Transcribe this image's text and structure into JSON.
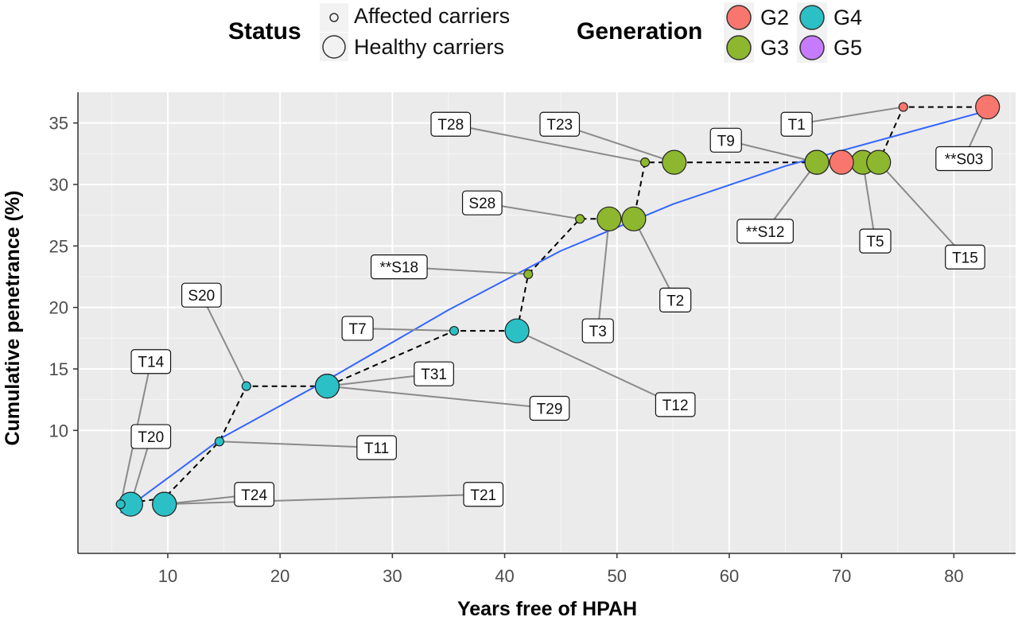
{
  "legend": {
    "status": {
      "title": "Status",
      "items": [
        {
          "label": "Affected carriers",
          "size": "small"
        },
        {
          "label": "Healthy carriers",
          "size": "large"
        }
      ]
    },
    "generation": {
      "title": "Generation",
      "items": [
        {
          "label": "G2",
          "color": "#F8766D"
        },
        {
          "label": "G4",
          "color": "#2BC0C6"
        },
        {
          "label": "G3",
          "color": "#8DB72E"
        },
        {
          "label": "G5",
          "color": "#C77CFF"
        }
      ]
    }
  },
  "chart_data": {
    "type": "scatter",
    "xlabel": "Years free of HPAH",
    "ylabel": "Cumulative penetrance (%)",
    "xlim": [
      2,
      85.5
    ],
    "ylim": [
      0,
      37.5
    ],
    "xticks": [
      10,
      20,
      30,
      40,
      50,
      60,
      70,
      80
    ],
    "yticks": [
      10,
      15,
      20,
      25,
      30,
      35
    ],
    "grid": true,
    "legend_position": "top",
    "fit_curve": {
      "color": "#3366FF",
      "x": [
        5.8,
        15,
        24,
        35,
        45,
        55,
        65,
        75,
        83
      ],
      "y": [
        3.3,
        9.5,
        14.0,
        19.8,
        24.6,
        28.4,
        31.5,
        34.0,
        36.0
      ]
    },
    "step_line": {
      "x": [
        5.8,
        9.7,
        14.6,
        17.0,
        24.2,
        35.5,
        41.1,
        42.1,
        46.7,
        51.5,
        52.5,
        73.3,
        75.5,
        83.0
      ],
      "y": [
        4.0,
        4.5,
        9.1,
        13.6,
        13.6,
        18.1,
        18.1,
        22.7,
        27.2,
        27.2,
        31.8,
        31.8,
        36.3,
        36.3
      ]
    },
    "points": [
      {
        "label": "T14",
        "x": 5.8,
        "y": 4.0,
        "status": "Affected carriers",
        "generation": "G4",
        "lx": 8.5,
        "ly": 15.6
      },
      {
        "label": "T20",
        "x": 6.7,
        "y": 4.0,
        "status": "Healthy carriers",
        "generation": "G4",
        "lx": 8.5,
        "ly": 9.5
      },
      {
        "label": "T24",
        "x": 9.7,
        "y": 4.0,
        "status": "Healthy carriers",
        "generation": "G4",
        "lx": 17.7,
        "ly": 4.8
      },
      {
        "label": "T21",
        "x": 9.7,
        "y": 4.0,
        "status": "Healthy carriers",
        "generation": "G4",
        "lx": 38.1,
        "ly": 4.8
      },
      {
        "label": "T11",
        "x": 14.6,
        "y": 9.1,
        "status": "Affected carriers",
        "generation": "G4",
        "lx": 28.6,
        "ly": 8.6
      },
      {
        "label": "S20",
        "x": 17.0,
        "y": 13.6,
        "status": "Affected carriers",
        "generation": "G4",
        "lx": 13.0,
        "ly": 21.0
      },
      {
        "label": "T31",
        "x": 24.2,
        "y": 13.6,
        "status": "Healthy carriers",
        "generation": "G4",
        "lx": 33.7,
        "ly": 14.6
      },
      {
        "label": "T29",
        "x": 24.2,
        "y": 13.6,
        "status": "Healthy carriers",
        "generation": "G4",
        "lx": 44.0,
        "ly": 11.8
      },
      {
        "label": "T7",
        "x": 35.5,
        "y": 18.1,
        "status": "Affected carriers",
        "generation": "G4",
        "lx": 26.9,
        "ly": 18.3
      },
      {
        "label": "T12",
        "x": 41.1,
        "y": 18.1,
        "status": "Healthy carriers",
        "generation": "G4",
        "lx": 55.2,
        "ly": 12.1
      },
      {
        "label": "**S18",
        "x": 42.1,
        "y": 22.7,
        "status": "Affected carriers",
        "generation": "G3",
        "lx": 30.6,
        "ly": 23.3
      },
      {
        "label": "S28",
        "x": 46.7,
        "y": 27.2,
        "status": "Affected carriers",
        "generation": "G3",
        "lx": 38.0,
        "ly": 28.5
      },
      {
        "label": "T3",
        "x": 49.3,
        "y": 27.2,
        "status": "Healthy carriers",
        "generation": "G3",
        "lx": 48.3,
        "ly": 18.1
      },
      {
        "label": "T2",
        "x": 51.5,
        "y": 27.2,
        "status": "Healthy carriers",
        "generation": "G3",
        "lx": 55.2,
        "ly": 20.6
      },
      {
        "label": "T28",
        "x": 52.5,
        "y": 31.8,
        "status": "Affected carriers",
        "generation": "G3",
        "lx": 35.2,
        "ly": 34.9
      },
      {
        "label": "T23",
        "x": 55.1,
        "y": 31.8,
        "status": "Healthy carriers",
        "generation": "G3",
        "lx": 44.9,
        "ly": 34.9
      },
      {
        "label": "T9",
        "x": 67.8,
        "y": 31.8,
        "status": "Healthy carriers",
        "generation": "G3",
        "lx": 59.7,
        "ly": 33.6
      },
      {
        "label": "**S12",
        "x": 67.8,
        "y": 31.8,
        "status": "Healthy carriers",
        "generation": "G3",
        "lx": 63.2,
        "ly": 26.2
      },
      {
        "label": "T5",
        "x": 71.9,
        "y": 31.8,
        "status": "Healthy carriers",
        "generation": "G3",
        "lx": 73.0,
        "ly": 25.4
      },
      {
        "label": "T15",
        "x": 73.3,
        "y": 31.8,
        "status": "Healthy carriers",
        "generation": "G3",
        "lx": 81.0,
        "ly": 24.1
      },
      {
        "label": "",
        "x": 70.0,
        "y": 31.8,
        "status": "Healthy carriers",
        "generation": "G2"
      },
      {
        "label": "T1",
        "x": 75.5,
        "y": 36.3,
        "status": "Affected carriers",
        "generation": "G2",
        "lx": 66.0,
        "ly": 34.9
      },
      {
        "label": "**S03",
        "x": 83.0,
        "y": 36.3,
        "status": "Healthy carriers",
        "generation": "G2",
        "lx": 80.9,
        "ly": 32.1
      }
    ]
  }
}
